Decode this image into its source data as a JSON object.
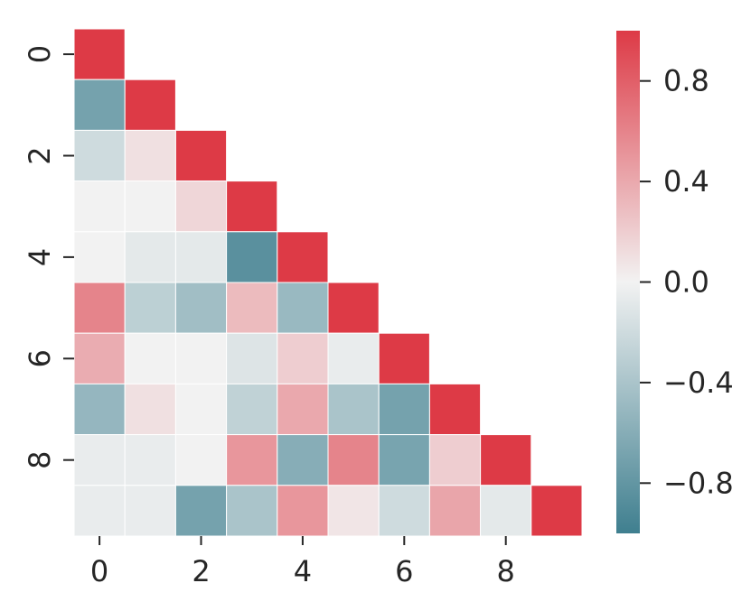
{
  "chart_data": {
    "type": "heatmap",
    "title": "",
    "xlabel": "",
    "ylabel": "",
    "mask": "upper-triangle (diagonal shown)",
    "rows": 10,
    "cols": 10,
    "x_tick_labels": [
      "0",
      "2",
      "4",
      "6",
      "8"
    ],
    "y_tick_labels": [
      "0",
      "2",
      "4",
      "6",
      "8"
    ],
    "values": [
      [
        1.0
      ],
      [
        -0.7,
        1.0
      ],
      [
        -0.2,
        0.1,
        1.0
      ],
      [
        0.0,
        0.0,
        0.15,
        1.0
      ],
      [
        0.0,
        -0.08,
        -0.08,
        -0.85,
        1.0
      ],
      [
        0.6,
        -0.3,
        -0.45,
        0.3,
        -0.5,
        1.0
      ],
      [
        0.38,
        0.0,
        0.0,
        -0.12,
        0.2,
        -0.05,
        1.0
      ],
      [
        -0.52,
        0.1,
        0.0,
        -0.28,
        0.4,
        -0.4,
        -0.7,
        1.0
      ],
      [
        -0.05,
        -0.05,
        0.0,
        0.5,
        -0.6,
        0.6,
        -0.68,
        0.2,
        1.0
      ],
      [
        -0.05,
        -0.05,
        -0.7,
        -0.4,
        0.5,
        0.07,
        -0.2,
        0.42,
        -0.08,
        1.0
      ]
    ],
    "colorbar": {
      "range": [
        -1.0,
        1.0
      ],
      "ticks": [
        0.8,
        0.4,
        0.0,
        -0.4,
        -0.8
      ],
      "tick_labels": [
        "0.8",
        "0.4",
        "0.0",
        "−0.4",
        "−0.8"
      ],
      "low_color": "#3f7f8f",
      "mid_color": "#f2f2f2",
      "high_color": "#dd3a46"
    },
    "grid": false,
    "cell_border_color": "#ffffff"
  }
}
